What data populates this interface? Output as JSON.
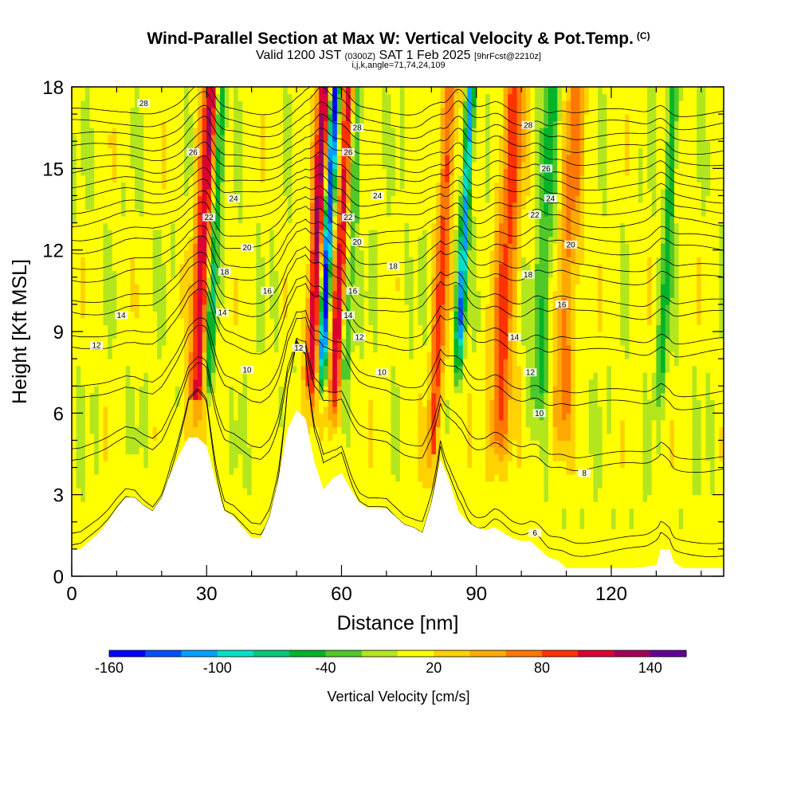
{
  "header": {
    "title": "Wind-Parallel Section at Max W: Vertical Velocity & Pot.Temp.",
    "copyright_mark": "(C)",
    "valid_prefix": "Valid 1200 JST",
    "valid_utc": "(0300Z)",
    "valid_date": "SAT 1 Feb 2025",
    "forecast_info": "[9hrFcst@2210z]",
    "grid_info": "i,j,k,angle=71,74,24,109"
  },
  "chart_data": {
    "type": "heatmap",
    "xlabel": "Distance [nm]",
    "ylabel": "Height [Kft MSL]",
    "xlim": [
      0,
      145
    ],
    "ylim": [
      0,
      18
    ],
    "x_ticks": [
      0,
      30,
      60,
      90,
      120
    ],
    "y_ticks": [
      0,
      3,
      6,
      9,
      12,
      15,
      18
    ],
    "colorbar": {
      "label": "Vertical Velocity [cm/s]",
      "min": -160,
      "max": 160,
      "step": 20,
      "tick_labels": [
        "-160",
        "-100",
        "-40",
        "20",
        "80",
        "140"
      ],
      "tick_values": [
        -160,
        -100,
        -40,
        20,
        80,
        140
      ],
      "colors": [
        "#0000ff",
        "#0050ff",
        "#00a0ff",
        "#00e0c8",
        "#00c878",
        "#00b428",
        "#50c828",
        "#b4e61e",
        "#ffff00",
        "#ffd200",
        "#ffaa00",
        "#ff7800",
        "#ff3200",
        "#dc0032",
        "#a0005a",
        "#640096"
      ]
    },
    "terrain_profile": [
      [
        0,
        1.0
      ],
      [
        2,
        1.0
      ],
      [
        4,
        1.3
      ],
      [
        6,
        1.6
      ],
      [
        8,
        2.0
      ],
      [
        10,
        2.5
      ],
      [
        12,
        2.9
      ],
      [
        14,
        2.9
      ],
      [
        16,
        2.6
      ],
      [
        18,
        2.4
      ],
      [
        20,
        2.9
      ],
      [
        22,
        3.8
      ],
      [
        24,
        4.5
      ],
      [
        26,
        5.1
      ],
      [
        28,
        5.1
      ],
      [
        30,
        4.8
      ],
      [
        32,
        3.5
      ],
      [
        34,
        2.4
      ],
      [
        36,
        2.2
      ],
      [
        38,
        1.8
      ],
      [
        40,
        1.4
      ],
      [
        42,
        1.4
      ],
      [
        44,
        2.2
      ],
      [
        46,
        3.6
      ],
      [
        48,
        5.4
      ],
      [
        50,
        6.1
      ],
      [
        52,
        5.8
      ],
      [
        54,
        4.2
      ],
      [
        56,
        3.2
      ],
      [
        58,
        3.6
      ],
      [
        60,
        3.8
      ],
      [
        62,
        3.2
      ],
      [
        64,
        2.7
      ],
      [
        66,
        2.5
      ],
      [
        68,
        2.5
      ],
      [
        70,
        2.5
      ],
      [
        72,
        2.2
      ],
      [
        74,
        1.9
      ],
      [
        76,
        1.8
      ],
      [
        78,
        1.6
      ],
      [
        80,
        2.7
      ],
      [
        82,
        4.3
      ],
      [
        84,
        3.5
      ],
      [
        86,
        2.4
      ],
      [
        88,
        2.0
      ],
      [
        90,
        1.8
      ],
      [
        92,
        1.7
      ],
      [
        94,
        1.8
      ],
      [
        96,
        1.6
      ],
      [
        98,
        1.4
      ],
      [
        100,
        1.3
      ],
      [
        102,
        1.3
      ],
      [
        104,
        1.0
      ],
      [
        106,
        0.7
      ],
      [
        108,
        0.6
      ],
      [
        110,
        0.3
      ],
      [
        125,
        0.3
      ],
      [
        130,
        0.4
      ],
      [
        131,
        1.0
      ],
      [
        133,
        1.0
      ],
      [
        134,
        0.5
      ],
      [
        136,
        0.3
      ],
      [
        145,
        0.3
      ]
    ],
    "updrafts": [
      {
        "x": 27.3,
        "z_base": 4.5,
        "peak": 110,
        "width": 2.2
      },
      {
        "x": 52.8,
        "z_base": 6.0,
        "peak": 120,
        "width": 1.5
      },
      {
        "x": 58.2,
        "z_base": 5.5,
        "peak": 110,
        "width": 1.5
      },
      {
        "x": 80.0,
        "z_base": 3.2,
        "peak": 80,
        "width": 1.6
      },
      {
        "x": 94.6,
        "z_base": 3.8,
        "peak": 80,
        "width": 2.5
      },
      {
        "x": 108.5,
        "z_base": 4.5,
        "peak": 60,
        "width": 2.4
      }
    ],
    "downdrafts": [
      {
        "x": 30.0,
        "z_base": 6.5,
        "peak": -100,
        "width": 1.2
      },
      {
        "x": 55.6,
        "z_base": 7.5,
        "peak": -160,
        "width": 1.0
      },
      {
        "x": 60.5,
        "z_base": 7.0,
        "peak": -60,
        "width": 1.3
      },
      {
        "x": 86.0,
        "z_base": 8.0,
        "peak": -120,
        "width": 1.0
      },
      {
        "x": 103.5,
        "z_base": 6.0,
        "peak": -50,
        "width": 2.0
      },
      {
        "x": 131.0,
        "z_base": 7.0,
        "peak": -60,
        "width": 1.2
      }
    ],
    "isentropes": {
      "levels": [
        6,
        8,
        10,
        12,
        14,
        16,
        18,
        20,
        22,
        24,
        26,
        28
      ],
      "labels": [
        {
          "text": "28",
          "x": 16,
          "z": 17.4
        },
        {
          "text": "26",
          "x": 27,
          "z": 15.6
        },
        {
          "text": "24",
          "x": 36,
          "z": 13.9
        },
        {
          "text": "22",
          "x": 30.5,
          "z": 13.2
        },
        {
          "text": "20",
          "x": 39,
          "z": 12.1
        },
        {
          "text": "18",
          "x": 34,
          "z": 11.2
        },
        {
          "text": "16",
          "x": 43.5,
          "z": 10.5
        },
        {
          "text": "14",
          "x": 33.5,
          "z": 9.7
        },
        {
          "text": "14",
          "x": 11,
          "z": 9.6
        },
        {
          "text": "12",
          "x": 5.5,
          "z": 8.5
        },
        {
          "text": "10",
          "x": 39,
          "z": 7.6
        },
        {
          "text": "12",
          "x": 50.5,
          "z": 8.4
        },
        {
          "text": "28",
          "x": 63.5,
          "z": 16.5
        },
        {
          "text": "26",
          "x": 61.5,
          "z": 15.6
        },
        {
          "text": "24",
          "x": 68,
          "z": 14.0
        },
        {
          "text": "22",
          "x": 61.5,
          "z": 13.2
        },
        {
          "text": "20",
          "x": 63.5,
          "z": 12.3
        },
        {
          "text": "18",
          "x": 71.5,
          "z": 11.4
        },
        {
          "text": "16",
          "x": 62.5,
          "z": 10.5
        },
        {
          "text": "14",
          "x": 61.5,
          "z": 9.6
        },
        {
          "text": "12",
          "x": 64,
          "z": 8.8
        },
        {
          "text": "10",
          "x": 69,
          "z": 7.5
        },
        {
          "text": "28",
          "x": 101.5,
          "z": 16.6
        },
        {
          "text": "26",
          "x": 105.5,
          "z": 15.0
        },
        {
          "text": "24",
          "x": 106.5,
          "z": 13.9
        },
        {
          "text": "22",
          "x": 103,
          "z": 13.3
        },
        {
          "text": "20",
          "x": 111,
          "z": 12.2
        },
        {
          "text": "18",
          "x": 101.5,
          "z": 11.1
        },
        {
          "text": "16",
          "x": 109,
          "z": 10.0
        },
        {
          "text": "14",
          "x": 98.5,
          "z": 8.8
        },
        {
          "text": "12",
          "x": 102,
          "z": 7.5
        },
        {
          "text": "10",
          "x": 104,
          "z": 6.0
        },
        {
          "text": "8",
          "x": 114,
          "z": 3.8
        },
        {
          "text": "6",
          "x": 103,
          "z": 1.6
        }
      ]
    }
  }
}
